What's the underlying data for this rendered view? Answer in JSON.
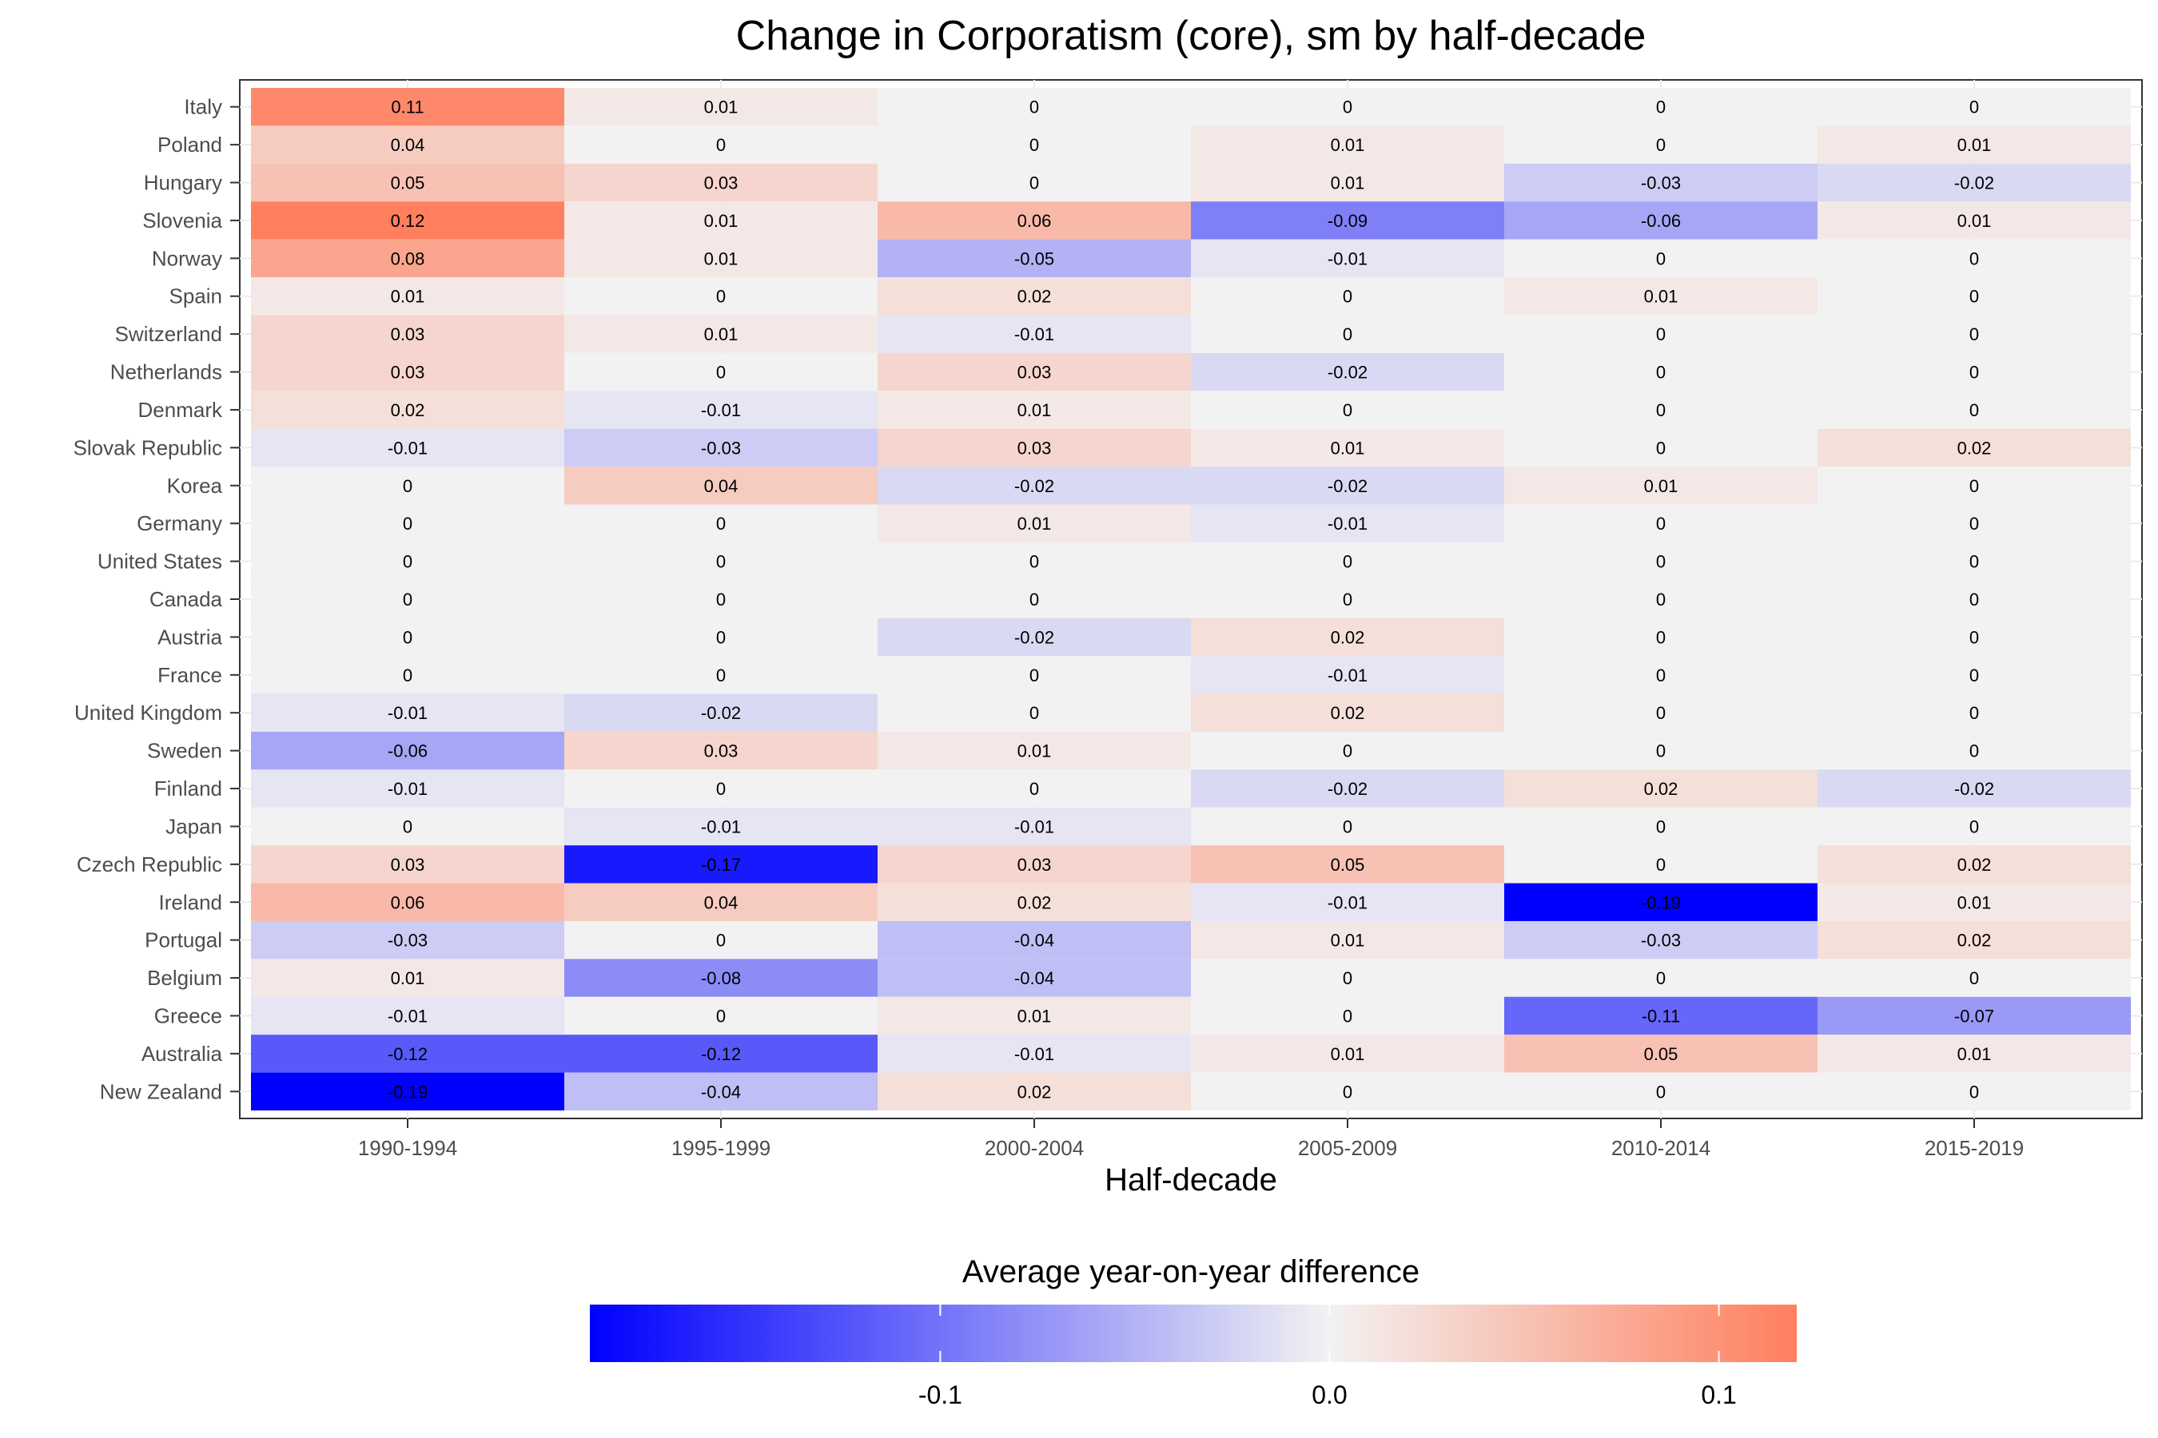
{
  "chart_data": {
    "type": "heatmap",
    "title": "Change in Corporatism (core), sm by half-decade",
    "xlabel": "Half-decade",
    "ylabel": "",
    "x": [
      "1990-1994",
      "1995-1999",
      "2000-2004",
      "2005-2009",
      "2010-2014",
      "2015-2019"
    ],
    "y": [
      "Italy",
      "Poland",
      "Hungary",
      "Slovenia",
      "Norway",
      "Spain",
      "Switzerland",
      "Netherlands",
      "Denmark",
      "Slovak Republic",
      "Korea",
      "Germany",
      "United States",
      "Canada",
      "Austria",
      "France",
      "United Kingdom",
      "Sweden",
      "Finland",
      "Japan",
      "Czech Republic",
      "Ireland",
      "Portugal",
      "Belgium",
      "Greece",
      "Australia",
      "New Zealand"
    ],
    "values": [
      [
        0.11,
        0.01,
        0,
        0,
        0,
        0
      ],
      [
        0.04,
        0,
        0,
        0.01,
        0,
        0.01
      ],
      [
        0.05,
        0.03,
        0,
        0.01,
        -0.03,
        -0.02
      ],
      [
        0.12,
        0.01,
        0.06,
        -0.09,
        -0.06,
        0.01
      ],
      [
        0.08,
        0.01,
        -0.05,
        -0.01,
        0,
        0
      ],
      [
        0.01,
        0,
        0.02,
        0,
        0.01,
        0
      ],
      [
        0.03,
        0.01,
        -0.01,
        0,
        0,
        0
      ],
      [
        0.03,
        0,
        0.03,
        -0.02,
        0,
        0
      ],
      [
        0.02,
        -0.01,
        0.01,
        0,
        0,
        0
      ],
      [
        -0.01,
        -0.03,
        0.03,
        0.01,
        0,
        0.02
      ],
      [
        0,
        0.04,
        -0.02,
        -0.02,
        0.01,
        0
      ],
      [
        0,
        0,
        0.01,
        -0.01,
        0,
        0
      ],
      [
        0,
        0,
        0,
        0,
        0,
        0
      ],
      [
        0,
        0,
        0,
        0,
        0,
        0
      ],
      [
        0,
        0,
        -0.02,
        0.02,
        0,
        0
      ],
      [
        0,
        0,
        0,
        -0.01,
        0,
        0
      ],
      [
        -0.01,
        -0.02,
        0,
        0.02,
        0,
        0
      ],
      [
        -0.06,
        0.03,
        0.01,
        0,
        0,
        0
      ],
      [
        -0.01,
        0,
        0,
        -0.02,
        0.02,
        -0.02
      ],
      [
        0,
        -0.01,
        -0.01,
        0,
        0,
        0
      ],
      [
        0.03,
        -0.17,
        0.03,
        0.05,
        0,
        0.02
      ],
      [
        0.06,
        0.04,
        0.02,
        -0.01,
        -0.19,
        0.01
      ],
      [
        -0.03,
        0,
        -0.04,
        0.01,
        -0.03,
        0.02
      ],
      [
        0.01,
        -0.08,
        -0.04,
        0,
        0,
        0
      ],
      [
        -0.01,
        0,
        0.01,
        0,
        -0.11,
        -0.07
      ],
      [
        -0.12,
        -0.12,
        -0.01,
        0.01,
        0.05,
        0.01
      ],
      [
        -0.19,
        -0.04,
        0.02,
        0,
        0,
        0
      ]
    ],
    "legend": {
      "title": "Average year-on-year difference",
      "placement": "bottom",
      "ticks": [
        -0.1,
        0.0,
        0.1
      ],
      "tick_labels": [
        "-0.1",
        "0.0",
        "0.1"
      ],
      "range": [
        -0.19,
        0.12
      ]
    },
    "colors": {
      "low": "#0000ff",
      "mid": "#f2f2f2",
      "high": "#ff7f5e"
    },
    "grid": true
  }
}
